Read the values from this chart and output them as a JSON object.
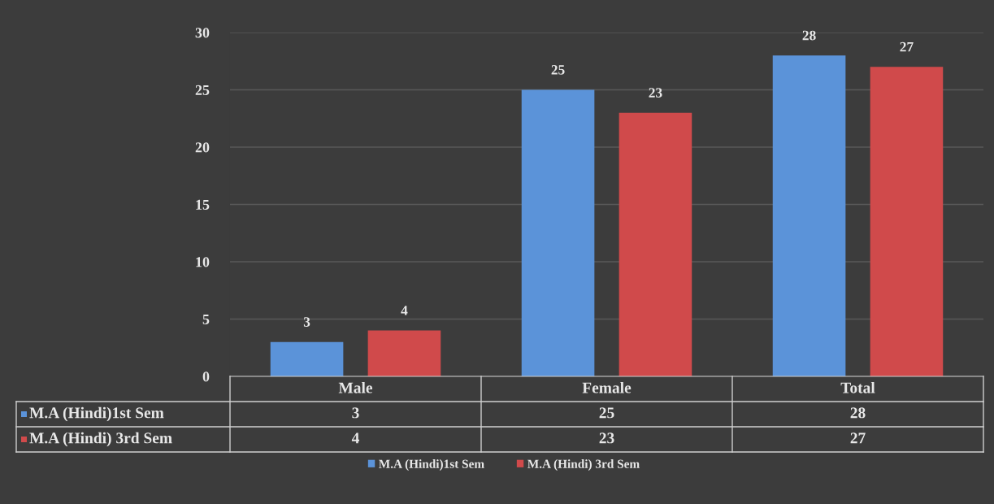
{
  "chart_data": {
    "type": "bar",
    "categories": [
      "Male",
      "Female",
      "Total"
    ],
    "series": [
      {
        "name": "M.A (Hindi)1st Sem",
        "color": "#5b93d9",
        "values": [
          3,
          25,
          28
        ]
      },
      {
        "name": "M.A (Hindi) 3rd Sem",
        "color": "#d04a4b",
        "values": [
          4,
          23,
          27
        ]
      }
    ],
    "ylim": [
      0,
      30
    ],
    "yticks": [
      0,
      5,
      10,
      15,
      20,
      25,
      30
    ],
    "grid": "y",
    "legend": "bottom",
    "data_labels": true,
    "annotations": [
      "3",
      "25",
      "28",
      "4",
      "23",
      "27"
    ]
  }
}
